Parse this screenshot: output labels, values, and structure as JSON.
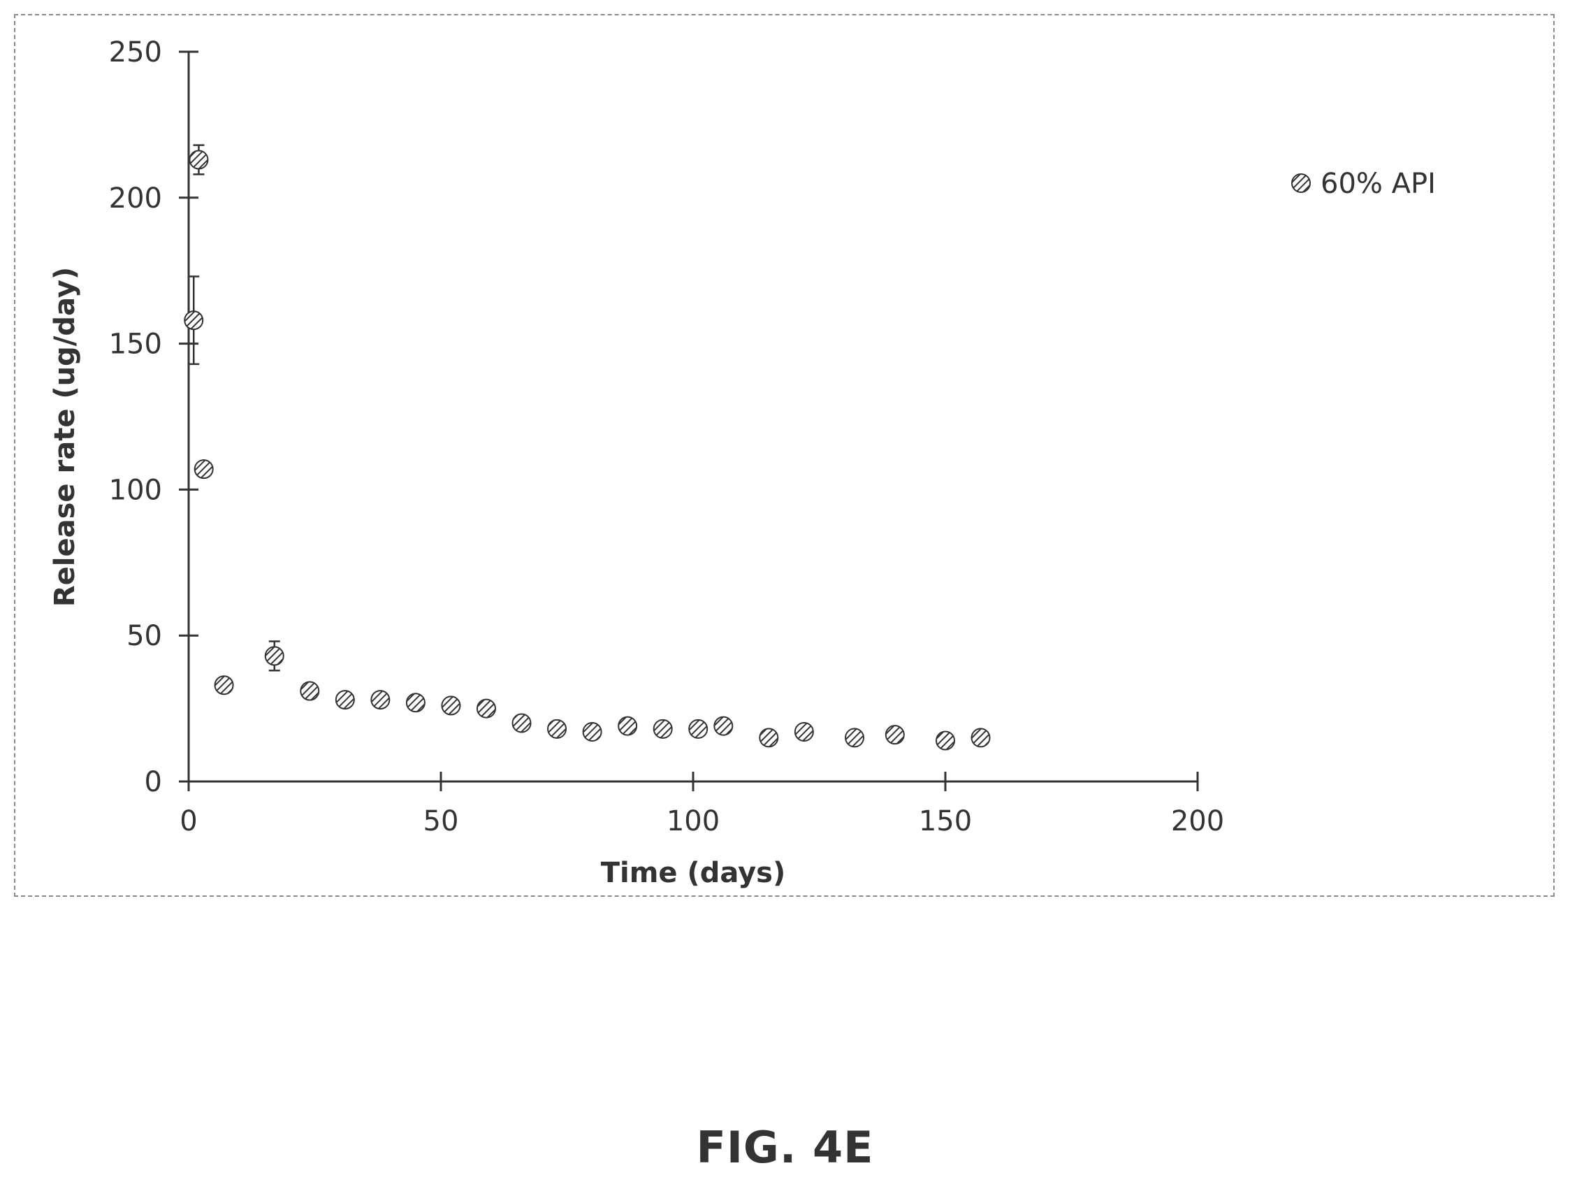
{
  "figure_caption": "FIG. 4E",
  "colors": {
    "axis": "#333333",
    "marker": "#333333",
    "frame": "#8a8a8a"
  },
  "chart_data": {
    "type": "scatter",
    "title": "",
    "xlabel": "Time (days)",
    "ylabel": "Release rate (ug/day)",
    "xlim": [
      0,
      200
    ],
    "ylim": [
      0,
      250
    ],
    "xticks": [
      0,
      50,
      100,
      150,
      200
    ],
    "yticks": [
      0,
      50,
      100,
      150,
      200,
      250
    ],
    "grid": false,
    "legend_position": "top-right",
    "series": [
      {
        "name": "60% API",
        "marker": "hatched-circle",
        "x": [
          1,
          2,
          3,
          7,
          17,
          24,
          31,
          38,
          45,
          52,
          59,
          66,
          73,
          80,
          87,
          94,
          101,
          106,
          115,
          122,
          132,
          140,
          150,
          157
        ],
        "y": [
          158,
          213,
          107,
          33,
          43,
          31,
          28,
          28,
          27,
          26,
          25,
          20,
          18,
          17,
          19,
          18,
          18,
          19,
          15,
          17,
          15,
          16,
          14,
          15
        ],
        "error": [
          15,
          5,
          0,
          0,
          5,
          0,
          0,
          0,
          0,
          0,
          0,
          0,
          0,
          0,
          0,
          0,
          0,
          0,
          0,
          0,
          0,
          0,
          0,
          0
        ]
      }
    ]
  }
}
